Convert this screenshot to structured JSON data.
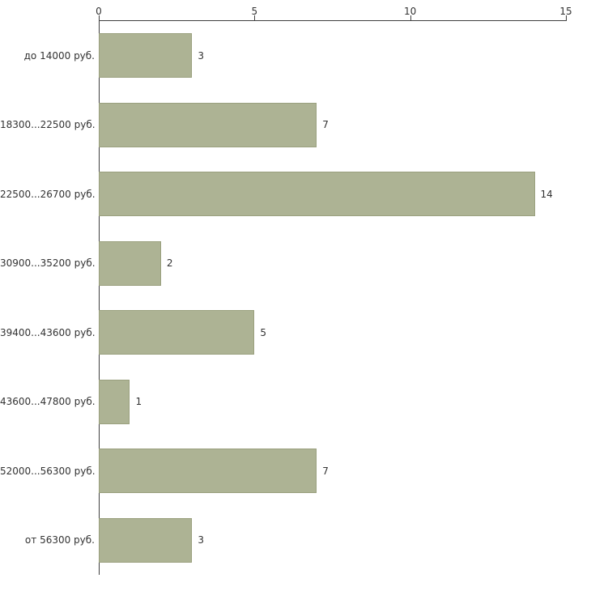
{
  "chart_data": {
    "type": "bar",
    "orientation": "horizontal",
    "title": "",
    "xlabel": "",
    "ylabel": "",
    "categories": [
      "до 14000 руб.",
      "18300...22500 руб.",
      "22500...26700 руб.",
      "30900...35200 руб.",
      "39400...43600 руб.",
      "43600...47800 руб.",
      "52000...56300 руб.",
      "от 56300 руб."
    ],
    "values": [
      3,
      7,
      14,
      2,
      5,
      1,
      7,
      3
    ],
    "xlim": [
      0,
      15
    ],
    "x_ticks": [
      "0",
      "5",
      "10",
      "15"
    ],
    "axis_position": "top",
    "grid": false,
    "legend": false,
    "bar_color": "#adb394",
    "bar_border_color": "#9aa07e",
    "axis_color": "#3f3f3f",
    "text_color": "#333333",
    "background": "#ffffff"
  }
}
